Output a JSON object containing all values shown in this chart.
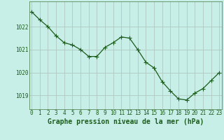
{
  "x": [
    0,
    1,
    2,
    3,
    4,
    5,
    6,
    7,
    8,
    9,
    10,
    11,
    12,
    13,
    14,
    15,
    16,
    17,
    18,
    19,
    20,
    21,
    22,
    23
  ],
  "y": [
    1022.65,
    1022.3,
    1022.0,
    1021.6,
    1021.3,
    1021.2,
    1021.0,
    1020.7,
    1020.7,
    1021.1,
    1021.3,
    1021.55,
    1021.5,
    1021.0,
    1020.45,
    1020.2,
    1019.6,
    1019.2,
    1018.85,
    1018.8,
    1019.1,
    1019.3,
    1019.65,
    1020.0
  ],
  "line_color": "#1a5c1a",
  "marker_color": "#1a5c1a",
  "bg_color": "#c8eee8",
  "grid_color": "#b0c8c0",
  "border_color": "#5a8a5a",
  "xlabel": "Graphe pression niveau de la mer (hPa)",
  "xlabel_color": "#1a5c1a",
  "tick_color": "#1a5c1a",
  "ylim": [
    1018.4,
    1023.1
  ],
  "yticks": [
    1019,
    1020,
    1021,
    1022
  ],
  "xlim": [
    -0.3,
    23.3
  ],
  "xticks": [
    0,
    1,
    2,
    3,
    4,
    5,
    6,
    7,
    8,
    9,
    10,
    11,
    12,
    13,
    14,
    15,
    16,
    17,
    18,
    19,
    20,
    21,
    22,
    23
  ],
  "title_fontsize": 7,
  "tick_fontsize": 5.5,
  "linewidth": 0.9,
  "markersize": 2.2
}
